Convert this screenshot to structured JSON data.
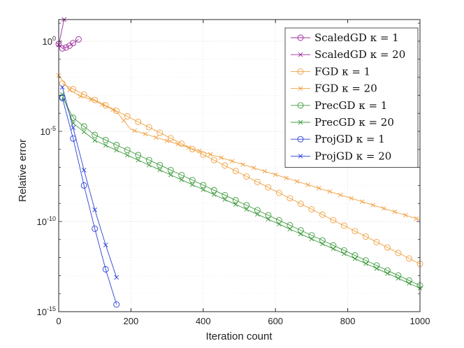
{
  "chart_data": {
    "type": "line",
    "title": "",
    "xlabel": "Iteration count",
    "ylabel": "Relative error",
    "yscale": "log",
    "xlim": [
      0,
      1000
    ],
    "ylim_exponent": [
      -15,
      1.2
    ],
    "xticks": [
      0,
      200,
      400,
      600,
      800,
      1000
    ],
    "xtick_labels": [
      "0",
      "200",
      "400",
      "600",
      "800",
      "1000"
    ],
    "yticks_exponent": [
      0,
      -5,
      -10,
      -15
    ],
    "ytick_labels": [
      {
        "base": "10",
        "exp": "0"
      },
      {
        "base": "10",
        "exp": "-5"
      },
      {
        "base": "10",
        "exp": "-10"
      },
      {
        "base": "10",
        "exp": "-15"
      }
    ],
    "grid": true,
    "legend_position": "top-right",
    "series": [
      {
        "name": "ScaledGD",
        "kappa_text": "κ = 1",
        "color": "#9b2a9b",
        "marker": "circle",
        "points": [
          [
            0,
            -0.15
          ],
          [
            10,
            -0.4
          ],
          [
            20,
            -0.35
          ],
          [
            30,
            -0.25
          ],
          [
            40,
            -0.1
          ],
          [
            55,
            0.1
          ]
        ]
      },
      {
        "name": "ScaledGD",
        "kappa_text": "κ = 20",
        "color": "#9b2a9b",
        "marker": "x",
        "points": [
          [
            0,
            -0.2
          ],
          [
            15,
            1.2
          ]
        ]
      },
      {
        "name": "FGD",
        "kappa_text": "κ = 1",
        "color": "#f0a040",
        "marker": "circle",
        "points": [
          [
            10,
            -2.35
          ],
          [
            1000,
            -12.35
          ]
        ]
      },
      {
        "name": "FGD",
        "kappa_text": "κ = 20",
        "color": "#f0a040",
        "marker": "x",
        "points": [
          [
            0,
            -1.9
          ],
          [
            30,
            -2.7
          ],
          [
            60,
            -3.05
          ],
          [
            100,
            -3.3
          ],
          [
            130,
            -3.6
          ],
          [
            160,
            -3.9
          ],
          [
            200,
            -4.9
          ],
          [
            1000,
            -9.9
          ]
        ]
      },
      {
        "name": "PrecGD",
        "kappa_text": "κ = 1",
        "color": "#3d9a3d",
        "marker": "circle",
        "points": [
          [
            10,
            -3.1
          ],
          [
            40,
            -4.25
          ],
          [
            100,
            -5.2
          ],
          [
            1000,
            -13.55
          ]
        ]
      },
      {
        "name": "PrecGD",
        "kappa_text": "κ = 20",
        "color": "#3d9a3d",
        "marker": "x",
        "points": [
          [
            10,
            -2.95
          ],
          [
            40,
            -4.55
          ],
          [
            100,
            -5.5
          ],
          [
            1000,
            -13.7
          ]
        ]
      },
      {
        "name": "ProjGD",
        "kappa_text": "κ = 1",
        "color": "#2a3ed8",
        "marker": "circle",
        "points": [
          [
            10,
            -3.15
          ],
          [
            40,
            -5.4
          ],
          [
            70,
            -8.0
          ],
          [
            100,
            -10.4
          ],
          [
            130,
            -12.65
          ],
          [
            160,
            -14.6
          ]
        ]
      },
      {
        "name": "ProjGD",
        "kappa_text": "κ = 20",
        "color": "#2a3ed8",
        "marker": "x",
        "points": [
          [
            10,
            -2.55
          ],
          [
            40,
            -4.8
          ],
          [
            70,
            -7.15
          ],
          [
            100,
            -9.35
          ],
          [
            130,
            -11.3
          ],
          [
            160,
            -13.1
          ]
        ]
      }
    ]
  }
}
